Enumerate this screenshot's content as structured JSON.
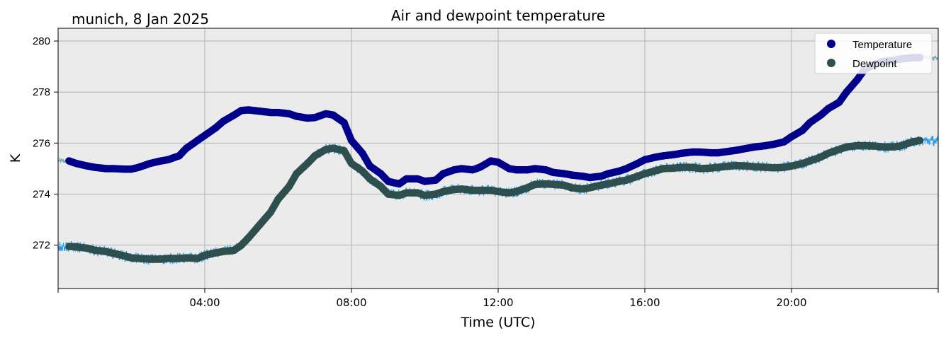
{
  "header": {
    "location_date": "munich, 8 Jan 2025"
  },
  "chart_data": {
    "type": "scatter",
    "title": "Air and dewpoint temperature",
    "xlabel": "Time (UTC)",
    "ylabel": "K",
    "xlim_hours": [
      0,
      24
    ],
    "ylim": [
      270.3,
      280.5
    ],
    "x_ticks": [
      {
        "hour": 0,
        "label": ""
      },
      {
        "hour": 4,
        "label": "04:00"
      },
      {
        "hour": 8,
        "label": "08:00"
      },
      {
        "hour": 12,
        "label": "12:00"
      },
      {
        "hour": 16,
        "label": "16:00"
      },
      {
        "hour": 20,
        "label": "20:00"
      },
      {
        "hour": 24,
        "label": ""
      }
    ],
    "y_ticks": [
      272,
      274,
      276,
      278,
      280
    ],
    "y_tick_labels": [
      "272",
      "274",
      "276",
      "278",
      "280"
    ],
    "grid": true,
    "background": "#ebebeb",
    "legend_position": "top-right",
    "legend": [
      {
        "label": "Temperature",
        "color": "#00008b"
      },
      {
        "label": "Dewpoint",
        "color": "#2f4f4f"
      }
    ],
    "series": [
      {
        "name": "Temperature",
        "color": "#00008b",
        "noise_color": "#6fa8a8",
        "x": [
          0.3,
          0.5,
          0.8,
          1.0,
          1.3,
          1.5,
          1.8,
          2.0,
          2.2,
          2.5,
          2.8,
          3.0,
          3.3,
          3.5,
          3.8,
          4.0,
          4.3,
          4.5,
          4.8,
          5.0,
          5.2,
          5.5,
          5.8,
          6.0,
          6.3,
          6.5,
          6.8,
          7.0,
          7.3,
          7.5,
          7.8,
          8.0,
          8.3,
          8.5,
          8.8,
          9.0,
          9.3,
          9.5,
          9.8,
          10.0,
          10.3,
          10.5,
          10.8,
          11.0,
          11.3,
          11.5,
          11.8,
          12.0,
          12.3,
          12.5,
          12.8,
          13.0,
          13.3,
          13.5,
          13.8,
          14.0,
          14.3,
          14.5,
          14.8,
          15.0,
          15.3,
          15.5,
          15.8,
          16.0,
          16.3,
          16.5,
          16.8,
          17.0,
          17.3,
          17.5,
          17.8,
          18.0,
          18.3,
          18.5,
          18.8,
          19.0,
          19.3,
          19.5,
          19.8,
          20.0,
          20.3,
          20.5,
          20.8,
          21.0,
          21.3,
          21.5,
          21.8,
          22.0,
          22.3,
          22.5,
          22.8,
          23.0,
          23.3,
          23.5
        ],
        "values": [
          275.3,
          275.2,
          275.1,
          275.05,
          275.0,
          275.0,
          274.98,
          274.98,
          275.05,
          275.2,
          275.3,
          275.35,
          275.5,
          275.8,
          276.1,
          276.3,
          276.6,
          276.85,
          277.1,
          277.28,
          277.3,
          277.25,
          277.2,
          277.2,
          277.15,
          277.05,
          276.98,
          277.0,
          277.15,
          277.1,
          276.8,
          276.1,
          275.6,
          275.1,
          274.8,
          274.5,
          274.4,
          274.6,
          274.6,
          274.5,
          274.55,
          274.8,
          274.95,
          275.0,
          274.95,
          275.05,
          275.3,
          275.25,
          275.0,
          274.95,
          274.95,
          275.0,
          274.95,
          274.85,
          274.8,
          274.75,
          274.7,
          274.65,
          274.7,
          274.8,
          274.9,
          275.0,
          275.2,
          275.35,
          275.45,
          275.5,
          275.55,
          275.6,
          275.65,
          275.65,
          275.62,
          275.62,
          275.68,
          275.72,
          275.8,
          275.85,
          275.9,
          275.95,
          276.05,
          276.25,
          276.5,
          276.8,
          277.1,
          277.35,
          277.6,
          278.0,
          278.5,
          278.9,
          279.1,
          279.2,
          279.25,
          279.3,
          279.35,
          279.35
        ]
      },
      {
        "name": "Dewpoint",
        "color": "#2f4f4f",
        "noise_color": "#1e9be8",
        "x": [
          0.3,
          0.5,
          0.8,
          1.0,
          1.3,
          1.5,
          1.8,
          2.0,
          2.2,
          2.5,
          2.8,
          3.0,
          3.3,
          3.5,
          3.8,
          4.0,
          4.3,
          4.5,
          4.8,
          5.0,
          5.2,
          5.5,
          5.8,
          6.0,
          6.3,
          6.5,
          6.8,
          7.0,
          7.3,
          7.5,
          7.8,
          8.0,
          8.3,
          8.5,
          8.8,
          9.0,
          9.3,
          9.5,
          9.8,
          10.0,
          10.3,
          10.5,
          10.8,
          11.0,
          11.3,
          11.5,
          11.8,
          12.0,
          12.3,
          12.5,
          12.8,
          13.0,
          13.3,
          13.5,
          13.8,
          14.0,
          14.3,
          14.5,
          14.8,
          15.0,
          15.3,
          15.5,
          15.8,
          16.0,
          16.3,
          16.5,
          16.8,
          17.0,
          17.3,
          17.5,
          17.8,
          18.0,
          18.3,
          18.5,
          18.8,
          19.0,
          19.3,
          19.5,
          19.8,
          20.0,
          20.3,
          20.5,
          20.8,
          21.0,
          21.3,
          21.5,
          21.8,
          22.0,
          22.3,
          22.5,
          22.8,
          23.0,
          23.3,
          23.5
        ],
        "values": [
          271.95,
          271.93,
          271.88,
          271.8,
          271.75,
          271.68,
          271.58,
          271.5,
          271.48,
          271.45,
          271.45,
          271.48,
          271.48,
          271.5,
          271.48,
          271.6,
          271.7,
          271.75,
          271.8,
          272.0,
          272.3,
          272.8,
          273.3,
          273.8,
          274.3,
          274.8,
          275.2,
          275.5,
          275.75,
          275.8,
          275.7,
          275.2,
          274.9,
          274.6,
          274.3,
          274.0,
          273.95,
          274.05,
          274.05,
          273.95,
          274.0,
          274.1,
          274.18,
          274.2,
          274.15,
          274.15,
          274.15,
          274.1,
          274.05,
          274.1,
          274.25,
          274.38,
          274.4,
          274.38,
          274.35,
          274.25,
          274.2,
          274.25,
          274.35,
          274.4,
          274.5,
          274.55,
          274.7,
          274.8,
          274.92,
          275.0,
          275.02,
          275.05,
          275.05,
          275.0,
          275.02,
          275.05,
          275.1,
          275.12,
          275.1,
          275.07,
          275.05,
          275.03,
          275.05,
          275.1,
          275.2,
          275.3,
          275.45,
          275.6,
          275.75,
          275.85,
          275.9,
          275.9,
          275.88,
          275.85,
          275.85,
          275.9,
          276.05,
          276.1
        ]
      }
    ]
  }
}
